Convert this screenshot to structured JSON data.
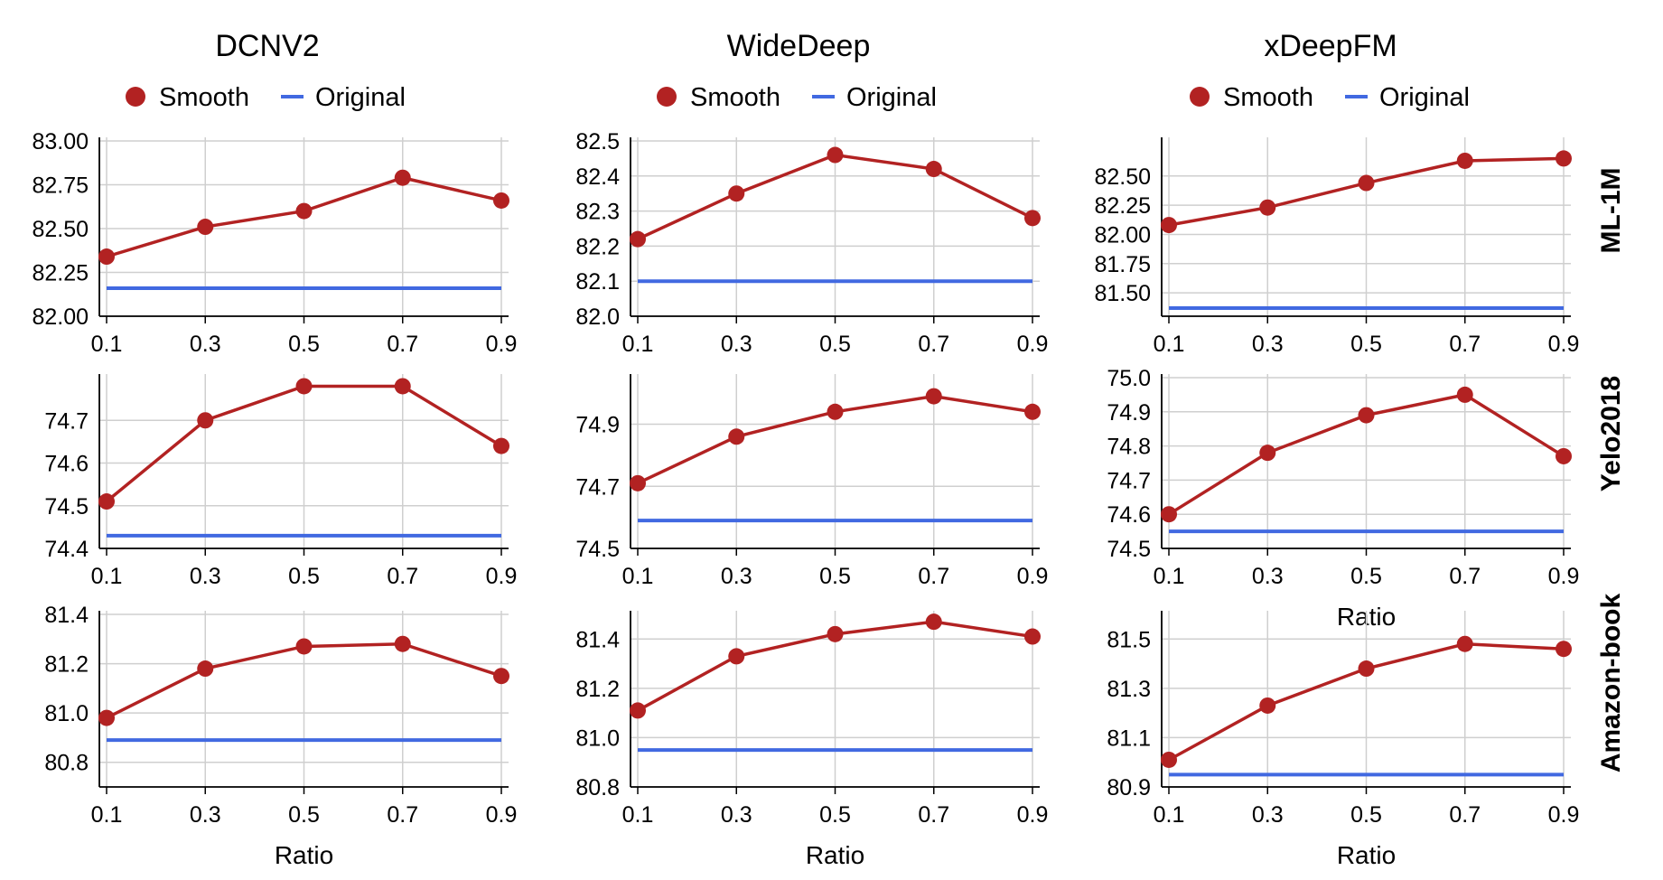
{
  "columns": [
    "DCNV2",
    "WideDeep",
    "xDeepFM"
  ],
  "rows": [
    "ML-1M",
    "Yelo2018",
    "Amazon-book"
  ],
  "legend": {
    "smooth": "Smooth",
    "original": "Original",
    "smooth_color": "#b22222",
    "original_color": "#4169e1"
  },
  "xlabel": "Ratio",
  "chart_data": [
    {
      "type": "line",
      "row": "ML-1M",
      "column": "DCNV2",
      "x": [
        0.1,
        0.3,
        0.5,
        0.7,
        0.9
      ],
      "xticks": [
        "0.1",
        "0.3",
        "0.5",
        "0.7",
        "0.9"
      ],
      "ylim": [
        82.0,
        83.0
      ],
      "yticks": [
        "82.00",
        "82.25",
        "82.50",
        "82.75",
        "83.00"
      ],
      "ytick_values": [
        82.0,
        82.25,
        82.5,
        82.75,
        83.0
      ],
      "series": [
        {
          "name": "Smooth",
          "values": [
            82.34,
            82.51,
            82.6,
            82.79,
            82.66
          ]
        },
        {
          "name": "Original",
          "values": [
            82.16,
            82.16,
            82.16,
            82.16,
            82.16
          ]
        }
      ],
      "grid": true,
      "xlabel": ""
    },
    {
      "type": "line",
      "row": "ML-1M",
      "column": "WideDeep",
      "x": [
        0.1,
        0.3,
        0.5,
        0.7,
        0.9
      ],
      "xticks": [
        "0.1",
        "0.3",
        "0.5",
        "0.7",
        "0.9"
      ],
      "ylim": [
        82.0,
        82.5
      ],
      "yticks": [
        "82.0",
        "82.1",
        "82.2",
        "82.3",
        "82.4",
        "82.5"
      ],
      "ytick_values": [
        82.0,
        82.1,
        82.2,
        82.3,
        82.4,
        82.5
      ],
      "series": [
        {
          "name": "Smooth",
          "values": [
            82.22,
            82.35,
            82.46,
            82.42,
            82.28
          ]
        },
        {
          "name": "Original",
          "values": [
            82.1,
            82.1,
            82.1,
            82.1,
            82.1
          ]
        }
      ],
      "grid": true,
      "xlabel": ""
    },
    {
      "type": "line",
      "row": "ML-1M",
      "column": "xDeepFM",
      "x": [
        0.1,
        0.3,
        0.5,
        0.7,
        0.9
      ],
      "xticks": [
        "0.1",
        "0.3",
        "0.5",
        "0.7",
        "0.9"
      ],
      "ylim": [
        81.3,
        82.8
      ],
      "yticks": [
        "81.50",
        "81.75",
        "82.00",
        "82.25",
        "82.50"
      ],
      "ytick_values": [
        81.5,
        81.75,
        82.0,
        82.25,
        82.5
      ],
      "series": [
        {
          "name": "Smooth",
          "values": [
            82.08,
            82.23,
            82.44,
            82.63,
            82.65
          ]
        },
        {
          "name": "Original",
          "values": [
            81.37,
            81.37,
            81.37,
            81.37,
            81.37
          ]
        }
      ],
      "grid": true,
      "xlabel": ""
    },
    {
      "type": "line",
      "row": "Yelo2018",
      "column": "DCNV2",
      "x": [
        0.1,
        0.3,
        0.5,
        0.7,
        0.9
      ],
      "xticks": [
        "0.1",
        "0.3",
        "0.5",
        "0.7",
        "0.9"
      ],
      "ylim": [
        74.4,
        74.8
      ],
      "yticks": [
        "74.4",
        "74.5",
        "74.6",
        "74.7"
      ],
      "ytick_values": [
        74.4,
        74.5,
        74.6,
        74.7
      ],
      "series": [
        {
          "name": "Smooth",
          "values": [
            74.51,
            74.7,
            74.78,
            74.78,
            74.64
          ]
        },
        {
          "name": "Original",
          "values": [
            74.43,
            74.43,
            74.43,
            74.43,
            74.43
          ]
        }
      ],
      "grid": true,
      "xlabel": ""
    },
    {
      "type": "line",
      "row": "Yelo2018",
      "column": "WideDeep",
      "x": [
        0.1,
        0.3,
        0.5,
        0.7,
        0.9
      ],
      "xticks": [
        "0.1",
        "0.3",
        "0.5",
        "0.7",
        "0.9"
      ],
      "ylim": [
        74.5,
        75.05
      ],
      "yticks": [
        "74.5",
        "74.7",
        "74.9"
      ],
      "ytick_values": [
        74.5,
        74.7,
        74.9
      ],
      "series": [
        {
          "name": "Smooth",
          "values": [
            74.71,
            74.86,
            74.94,
            74.99,
            74.94
          ]
        },
        {
          "name": "Original",
          "values": [
            74.59,
            74.59,
            74.59,
            74.59,
            74.59
          ]
        }
      ],
      "grid": true,
      "xlabel": ""
    },
    {
      "type": "line",
      "row": "Yelo2018",
      "column": "xDeepFM",
      "x": [
        0.1,
        0.3,
        0.5,
        0.7,
        0.9
      ],
      "xticks": [
        "0.1",
        "0.3",
        "0.5",
        "0.7",
        "0.9"
      ],
      "ylim": [
        74.5,
        75.0
      ],
      "yticks": [
        "74.5",
        "74.6",
        "74.7",
        "74.8",
        "74.9",
        "75.0"
      ],
      "ytick_values": [
        74.5,
        74.6,
        74.7,
        74.8,
        74.9,
        75.0
      ],
      "series": [
        {
          "name": "Smooth",
          "values": [
            74.6,
            74.78,
            74.89,
            74.95,
            74.77
          ]
        },
        {
          "name": "Original",
          "values": [
            74.55,
            74.55,
            74.55,
            74.55,
            74.55
          ]
        }
      ],
      "grid": true,
      "xlabel": "Ratio"
    },
    {
      "type": "line",
      "row": "Amazon-book",
      "column": "DCNV2",
      "x": [
        0.1,
        0.3,
        0.5,
        0.7,
        0.9
      ],
      "xticks": [
        "0.1",
        "0.3",
        "0.5",
        "0.7",
        "0.9"
      ],
      "ylim": [
        80.7,
        81.4
      ],
      "yticks": [
        "80.8",
        "81.0",
        "81.2",
        "81.4"
      ],
      "ytick_values": [
        80.8,
        81.0,
        81.2,
        81.4
      ],
      "series": [
        {
          "name": "Smooth",
          "values": [
            80.98,
            81.18,
            81.27,
            81.28,
            81.15
          ]
        },
        {
          "name": "Original",
          "values": [
            80.89,
            80.89,
            80.89,
            80.89,
            80.89
          ]
        }
      ],
      "grid": true,
      "xlabel": "Ratio"
    },
    {
      "type": "line",
      "row": "Amazon-book",
      "column": "WideDeep",
      "x": [
        0.1,
        0.3,
        0.5,
        0.7,
        0.9
      ],
      "xticks": [
        "0.1",
        "0.3",
        "0.5",
        "0.7",
        "0.9"
      ],
      "ylim": [
        80.8,
        81.5
      ],
      "yticks": [
        "80.8",
        "81.0",
        "81.2",
        "81.4"
      ],
      "ytick_values": [
        80.8,
        81.0,
        81.2,
        81.4
      ],
      "series": [
        {
          "name": "Smooth",
          "values": [
            81.11,
            81.33,
            81.42,
            81.47,
            81.41
          ]
        },
        {
          "name": "Original",
          "values": [
            80.95,
            80.95,
            80.95,
            80.95,
            80.95
          ]
        }
      ],
      "grid": true,
      "xlabel": "Ratio"
    },
    {
      "type": "line",
      "row": "Amazon-book",
      "column": "xDeepFM",
      "x": [
        0.1,
        0.3,
        0.5,
        0.7,
        0.9
      ],
      "xticks": [
        "0.1",
        "0.3",
        "0.5",
        "0.7",
        "0.9"
      ],
      "ylim": [
        80.9,
        81.6
      ],
      "yticks": [
        "80.9",
        "81.1",
        "81.3",
        "81.5"
      ],
      "ytick_values": [
        80.9,
        81.1,
        81.3,
        81.5
      ],
      "series": [
        {
          "name": "Smooth",
          "values": [
            81.01,
            81.23,
            81.38,
            81.48,
            81.46
          ]
        },
        {
          "name": "Original",
          "values": [
            80.95,
            80.95,
            80.95,
            80.95,
            80.95
          ]
        }
      ],
      "grid": true,
      "xlabel": "Ratio"
    }
  ]
}
